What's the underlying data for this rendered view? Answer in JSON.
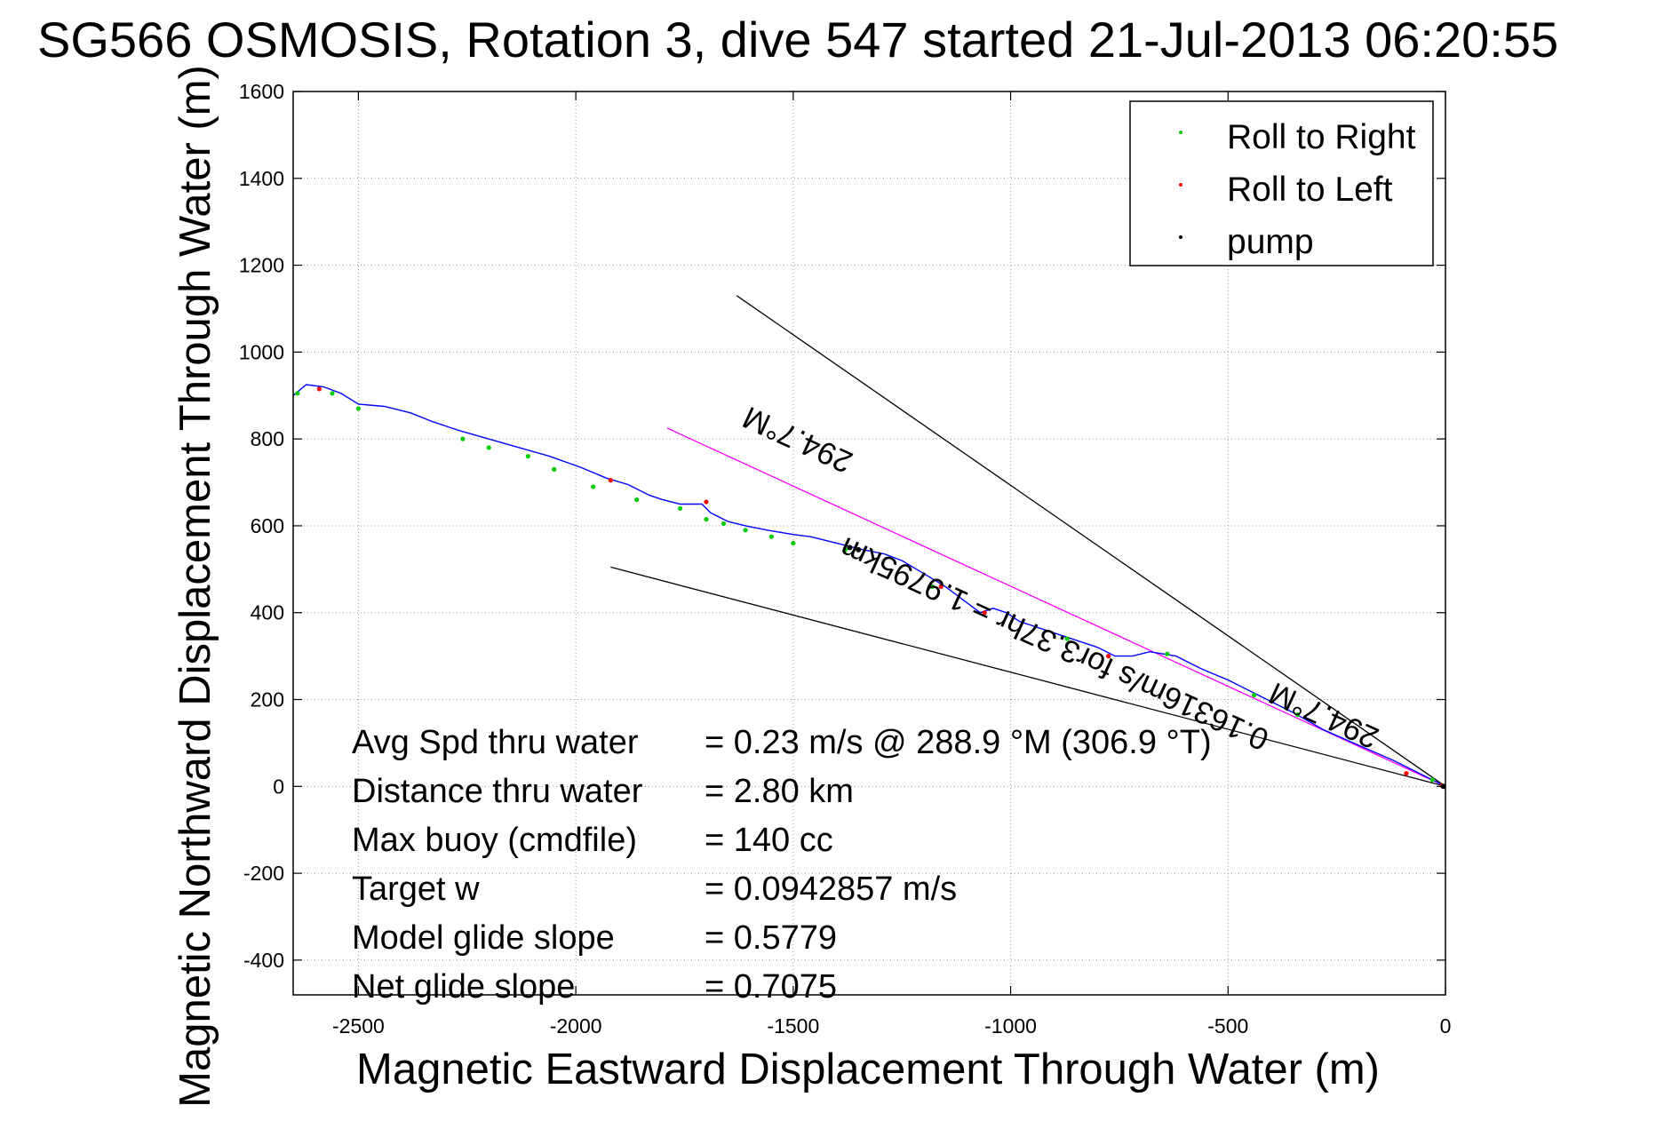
{
  "chart_data": {
    "type": "line",
    "title": "SG566 OSMOSIS, Rotation 3, dive 547 started 21-Jul-2013 06:20:55",
    "xlabel": "Magnetic Eastward Displacement Through Water (m)",
    "ylabel": "Magnetic Northward Displacement Through Water (m)",
    "xlim": [
      -2650,
      0
    ],
    "ylim": [
      -480,
      1600
    ],
    "xticks": [
      -2500,
      -2000,
      -1500,
      -1000,
      -500,
      0
    ],
    "yticks": [
      1600,
      1400,
      1200,
      1000,
      800,
      600,
      400,
      200,
      0,
      -200,
      -400
    ],
    "grid": true,
    "legend": {
      "position": "top-right",
      "entries": [
        {
          "label": "Roll to Right",
          "color": "#00cc00",
          "marker": "dot"
        },
        {
          "label": "Roll to Left",
          "color": "#ff0000",
          "marker": "dot"
        },
        {
          "label": "pump",
          "color": "#000000",
          "marker": "dot"
        }
      ]
    },
    "track": {
      "color": "#0000ff",
      "x": [
        0,
        -60,
        -120,
        -200,
        -280,
        -350,
        -420,
        -500,
        -560,
        -620,
        -680,
        -720,
        -760,
        -800,
        -860,
        -920,
        -980,
        -1010,
        -1040,
        -1070,
        -1110,
        -1150,
        -1200,
        -1250,
        -1290,
        -1340,
        -1380,
        -1420,
        -1460,
        -1500,
        -1560,
        -1610,
        -1650,
        -1690,
        -1710,
        -1730,
        -1760,
        -1800,
        -1830,
        -1880,
        -1930,
        -1990,
        -2060,
        -2130,
        -2200,
        -2270,
        -2330,
        -2380,
        -2440,
        -2500,
        -2540,
        -2580,
        -2620,
        -2650
      ],
      "y": [
        0,
        30,
        60,
        95,
        130,
        170,
        205,
        245,
        270,
        300,
        310,
        300,
        300,
        320,
        340,
        360,
        380,
        400,
        410,
        400,
        430,
        460,
        490,
        520,
        535,
        545,
        555,
        565,
        575,
        580,
        590,
        600,
        610,
        630,
        650,
        650,
        650,
        660,
        670,
        695,
        710,
        735,
        760,
        780,
        800,
        820,
        840,
        860,
        875,
        880,
        905,
        920,
        925,
        900
      ]
    },
    "roll_right_points": {
      "x": [
        -30,
        -340,
        -440,
        -640,
        -870,
        -1180,
        -1380,
        -1500,
        -1550,
        -1610,
        -1660,
        -1700,
        -1760,
        -1860,
        -1960,
        -2050,
        -2110,
        -2200,
        -2260,
        -2500,
        -2560,
        -2640
      ],
      "y": [
        15,
        165,
        210,
        305,
        340,
        460,
        545,
        560,
        575,
        590,
        605,
        615,
        640,
        660,
        690,
        730,
        760,
        780,
        800,
        870,
        905,
        905
      ]
    },
    "roll_left_points": {
      "x": [
        -8,
        -90,
        -775,
        -1060,
        -1160,
        -1700,
        -1920,
        -2590
      ],
      "y": [
        2,
        30,
        300,
        400,
        460,
        655,
        705,
        915
      ]
    },
    "pump_points": {
      "x": [
        -5,
        -1350,
        -1370
      ],
      "y": [
        0,
        545,
        550
      ]
    },
    "heading_lines": [
      {
        "color": "#000000",
        "x": [
          0,
          -1630
        ],
        "y": [
          0,
          1130
        ]
      },
      {
        "color": "#ff00ff",
        "x": [
          0,
          -1790
        ],
        "y": [
          0,
          825
        ]
      },
      {
        "color": "#000000",
        "x": [
          0,
          -1920
        ],
        "y": [
          0,
          505
        ]
      }
    ],
    "annotations": [
      {
        "text": "294.7°M",
        "x": -1480,
        "y": 820,
        "angle_deg": 204.7
      },
      {
        "text": "0.16316m/s for3.37hr = 1.9795km",
        "x": -890,
        "y": 350,
        "angle_deg": 204.7
      },
      {
        "text": "294.7°M",
        "x": -270,
        "y": 185,
        "angle_deg": 204.7
      }
    ],
    "stats": [
      {
        "label": "Avg Spd thru water",
        "value": "=  0.23 m/s @ 288.9 °M (306.9 °T)"
      },
      {
        "label": "Distance thru water",
        "value": "=  2.80 km"
      },
      {
        "label": "Max buoy (cmdfile)",
        "value": "= 140 cc"
      },
      {
        "label": "Target w",
        "value": "= 0.0942857 m/s"
      },
      {
        "label": "Model glide slope",
        "value": "= 0.5779"
      },
      {
        "label": "Net glide slope",
        "value": "= 0.7075"
      }
    ]
  }
}
